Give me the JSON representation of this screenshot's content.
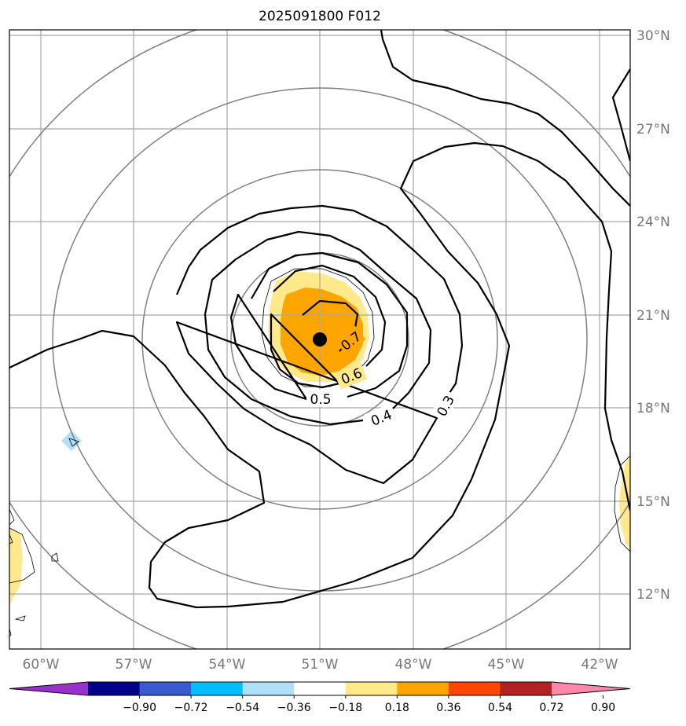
{
  "chart_data": {
    "type": "contour",
    "title": "2025091800 F012",
    "projection": "map",
    "grid": true,
    "center_marker": {
      "lon": -51.0,
      "lat": 20.2
    },
    "lon_ticks": [
      {
        "value": -60,
        "label": "60°W"
      },
      {
        "value": -57,
        "label": "57°W"
      },
      {
        "value": -54,
        "label": "54°W"
      },
      {
        "value": -51,
        "label": "51°W"
      },
      {
        "value": -48,
        "label": "48°W"
      },
      {
        "value": -45,
        "label": "45°W"
      },
      {
        "value": -42,
        "label": "42°W"
      }
    ],
    "lat_ticks": [
      {
        "value": 30,
        "label": "30°N"
      },
      {
        "value": 27,
        "label": "27°N"
      },
      {
        "value": 24,
        "label": "24°N"
      },
      {
        "value": 21,
        "label": "21°N"
      },
      {
        "value": 18,
        "label": "18°N"
      },
      {
        "value": 15,
        "label": "15°N"
      },
      {
        "value": 12,
        "label": "12°N"
      }
    ],
    "contour_labels": [
      "0.7",
      "0.6",
      "0.5",
      "0.4",
      "0.3"
    ],
    "colorbar": {
      "ticks": [
        "−0.90",
        "−0.72",
        "−0.54",
        "−0.36",
        "−0.18",
        "0.18",
        "0.36",
        "0.54",
        "0.72",
        "0.90"
      ],
      "colors": [
        "#9932cc",
        "#00008b",
        "#3a5bcd",
        "#00bfff",
        "#b0e0f8",
        "#ffffff",
        "#ffe98a",
        "#ffa500",
        "#ff4500",
        "#b22222",
        "#ff88aa"
      ]
    }
  }
}
